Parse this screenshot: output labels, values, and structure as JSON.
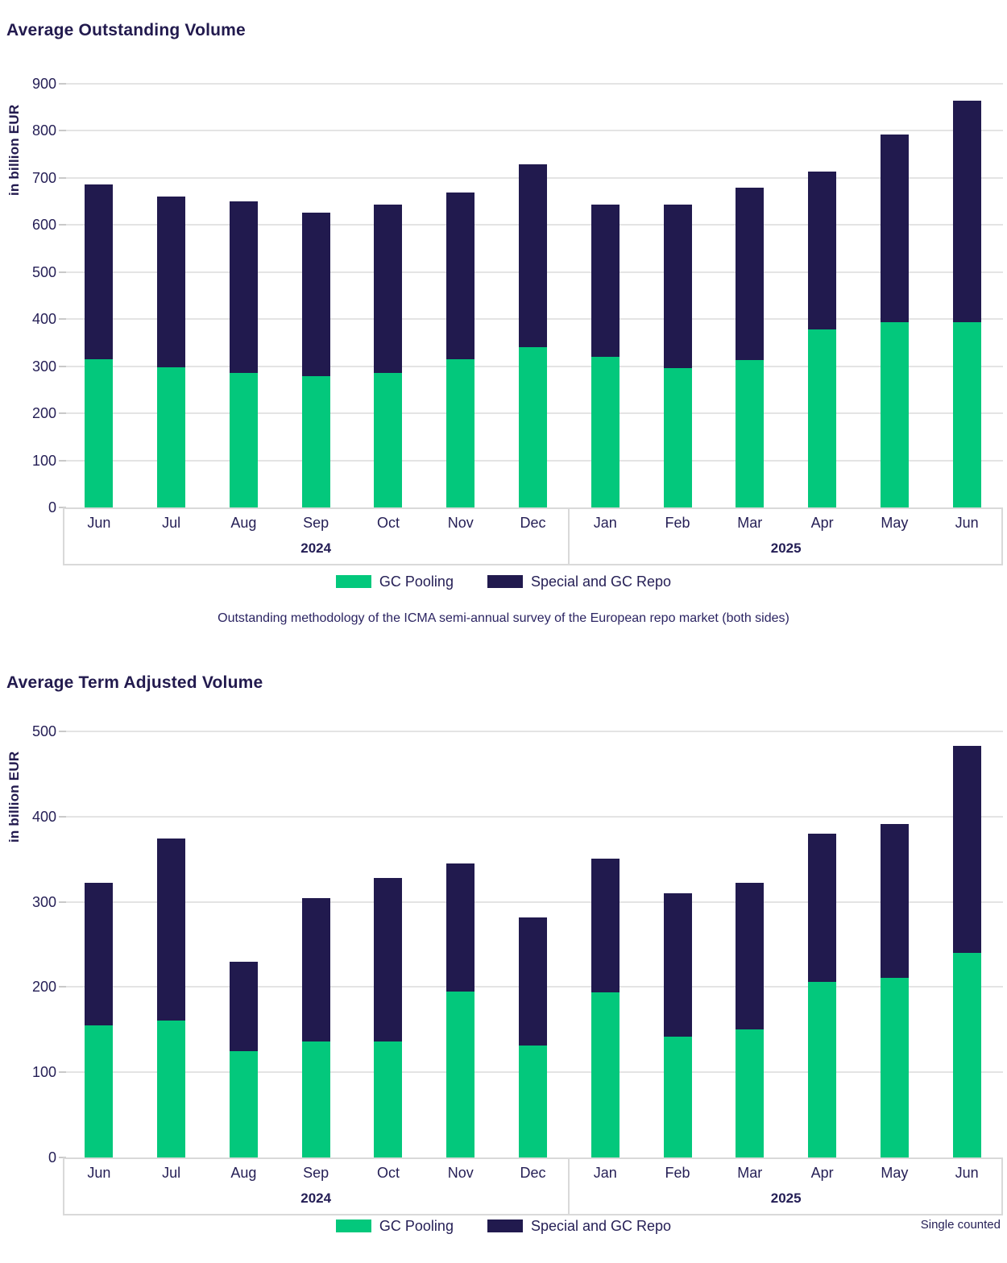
{
  "colors": {
    "gc_pooling_green": "#03c87c",
    "special_repo_navy": "#211a4e",
    "text_navy": "#241e55",
    "gridline_gray": "#e4e4e4",
    "axis_box_gray": "#d9d9d9"
  },
  "legend": {
    "gc_pooling": "GC Pooling",
    "special_repo": "Special and GC Repo"
  },
  "chart_data": [
    {
      "type": "bar",
      "stacked": true,
      "title": "Average Outstanding Volume",
      "ylabel": "in billion EUR",
      "xlabel": "",
      "ylim": [
        0,
        900
      ],
      "yticks": [
        0,
        100,
        200,
        300,
        400,
        500,
        600,
        700,
        800,
        900
      ],
      "grid": true,
      "legend_position": "bottom",
      "categories": [
        "Jun",
        "Jul",
        "Aug",
        "Sep",
        "Oct",
        "Nov",
        "Dec",
        "Jan",
        "Feb",
        "Mar",
        "Apr",
        "May",
        "Jun"
      ],
      "year_groups": [
        {
          "label": "2024",
          "span": 7
        },
        {
          "label": "2025",
          "span": 6
        }
      ],
      "series": [
        {
          "name": "GC Pooling",
          "color": "#03c87c",
          "values": [
            315,
            297,
            285,
            278,
            285,
            315,
            341,
            320,
            295,
            313,
            377,
            393,
            393
          ]
        },
        {
          "name": "Special and GC Repo",
          "color": "#211a4e",
          "values": [
            370,
            362,
            365,
            347,
            357,
            353,
            388,
            322,
            347,
            365,
            335,
            399,
            471
          ]
        }
      ],
      "totals": [
        685,
        659,
        650,
        625,
        642,
        668,
        729,
        642,
        642,
        678,
        712,
        792,
        864
      ],
      "footnote": "Outstanding methodology of the ICMA semi-annual survey of the European repo market (both sides)",
      "note": ""
    },
    {
      "type": "bar",
      "stacked": true,
      "title": "Average Term Adjusted Volume",
      "ylabel": "in billion EUR",
      "xlabel": "",
      "ylim": [
        0,
        500
      ],
      "yticks": [
        0,
        100,
        200,
        300,
        400,
        500
      ],
      "grid": true,
      "legend_position": "bottom",
      "categories": [
        "Jun",
        "Jul",
        "Aug",
        "Sep",
        "Oct",
        "Nov",
        "Dec",
        "Jan",
        "Feb",
        "Mar",
        "Apr",
        "May",
        "Jun"
      ],
      "year_groups": [
        {
          "label": "2024",
          "span": 7
        },
        {
          "label": "2025",
          "span": 6
        }
      ],
      "series": [
        {
          "name": "GC Pooling",
          "color": "#03c87c",
          "values": [
            155,
            161,
            125,
            136,
            136,
            195,
            131,
            194,
            142,
            150,
            206,
            211,
            240
          ]
        },
        {
          "name": "Special and GC Repo",
          "color": "#211a4e",
          "values": [
            167,
            213,
            105,
            168,
            192,
            150,
            151,
            157,
            168,
            172,
            174,
            180,
            243
          ]
        }
      ],
      "totals": [
        322,
        374,
        230,
        304,
        328,
        345,
        282,
        351,
        310,
        322,
        380,
        391,
        483
      ],
      "footnote": "",
      "note": "Single counted"
    }
  ]
}
